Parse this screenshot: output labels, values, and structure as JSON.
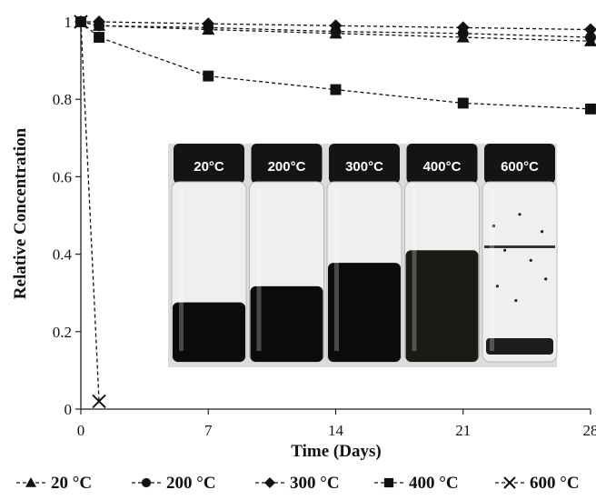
{
  "chart_data": {
    "type": "line",
    "title": "",
    "xlabel": "Time (Days)",
    "ylabel": "Relative Concentration",
    "xlim": [
      0,
      28
    ],
    "ylim": [
      0,
      1
    ],
    "xticks": [
      0,
      7,
      14,
      21,
      28
    ],
    "yticks": [
      0,
      0.2,
      0.4,
      0.6,
      0.8,
      1
    ],
    "x_tick_labels": [
      "0",
      "7",
      "14",
      "21",
      "28"
    ],
    "y_tick_labels": [
      "0",
      "0.2",
      "0.4",
      "0.6",
      "0.8",
      "1"
    ],
    "grid": false,
    "legend_position": "bottom",
    "series": [
      {
        "name": "20 °C",
        "marker": "triangle",
        "x": [
          0,
          1,
          7,
          14,
          21,
          28
        ],
        "y": [
          1.0,
          0.99,
          0.98,
          0.97,
          0.96,
          0.95
        ]
      },
      {
        "name": "200 °C",
        "marker": "circle",
        "x": [
          0,
          1,
          7,
          14,
          21,
          28
        ],
        "y": [
          1.0,
          0.99,
          0.985,
          0.975,
          0.97,
          0.96
        ]
      },
      {
        "name": "300 °C",
        "marker": "diamond",
        "x": [
          0,
          1,
          7,
          14,
          21,
          28
        ],
        "y": [
          1.0,
          1.0,
          0.995,
          0.99,
          0.985,
          0.98
        ]
      },
      {
        "name": "400 °C",
        "marker": "square",
        "x": [
          0,
          1,
          7,
          14,
          21,
          28
        ],
        "y": [
          1.0,
          0.96,
          0.86,
          0.825,
          0.79,
          0.775
        ]
      },
      {
        "name": "600 °C",
        "marker": "x",
        "x": [
          0,
          1
        ],
        "y": [
          1.0,
          0.02
        ]
      }
    ],
    "inset_photo": {
      "vial_labels": [
        "20°C",
        "200°C",
        "300°C",
        "400°C",
        "600°C"
      ],
      "fill_fractions": [
        0.33,
        0.42,
        0.55,
        0.62,
        0.0
      ]
    }
  }
}
